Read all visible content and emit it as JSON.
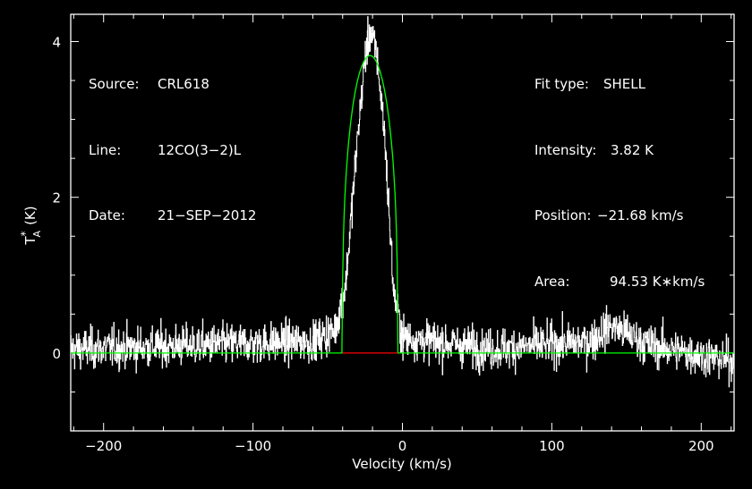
{
  "chart_data": {
    "type": "line",
    "xlabel": "Velocity (km/s)",
    "ylabel_main": "T",
    "ylabel_sub": "A",
    "ylabel_sup": "*",
    "ylabel_unit": "(K)",
    "xlim": [
      -222,
      222
    ],
    "ylim": [
      -1.0,
      4.35
    ],
    "xticks": [
      -200,
      -100,
      0,
      100,
      200
    ],
    "xtick_labels": [
      "−200",
      "−100",
      "0",
      "100",
      "200"
    ],
    "yticks": [
      0,
      2,
      4
    ],
    "ytick_labels": [
      "0",
      "2",
      "4"
    ],
    "grid": false,
    "colors": {
      "background": "#000000",
      "spectrum": "#ffffff",
      "fit": "#00ff00",
      "baseline": "#ff0000"
    },
    "spectrum": {
      "description_points": [
        {
          "x": -220,
          "y": 0.05
        },
        {
          "x": -60,
          "y": 0.15
        },
        {
          "x": -45,
          "y": 0.3
        },
        {
          "x": -38,
          "y": 0.9
        },
        {
          "x": -30,
          "y": 2.8
        },
        {
          "x": -25,
          "y": 3.8
        },
        {
          "x": -21.7,
          "y": 4.15
        },
        {
          "x": -17,
          "y": 3.8
        },
        {
          "x": -12,
          "y": 2.8
        },
        {
          "x": -6,
          "y": 0.8
        },
        {
          "x": 0,
          "y": 0.2
        },
        {
          "x": 60,
          "y": 0.05
        },
        {
          "x": 125,
          "y": 0.15
        },
        {
          "x": 140,
          "y": 0.35
        },
        {
          "x": 165,
          "y": 0.1
        },
        {
          "x": 220,
          "y": -0.1
        }
      ],
      "noise_rms": 0.13
    },
    "fit": {
      "type": "SHELL",
      "center": -21.68,
      "peak": 3.82,
      "halfwidth": 18.5,
      "baseline": 0
    }
  },
  "info_left": [
    {
      "label": "Source:",
      "value": "CRL618"
    },
    {
      "label": "Line:",
      "value": "12CO(3−2)L"
    },
    {
      "label": "Date:",
      "value": "21−SEP−2012"
    }
  ],
  "info_right": [
    {
      "label": "Fit type:",
      "value": "SHELL"
    },
    {
      "label": "Intensity:",
      "value": "3.82 K"
    },
    {
      "label": "Position:",
      "value": "−21.68 km/s"
    },
    {
      "label": "Area:",
      "value": "94.53 K∗km/s"
    }
  ]
}
